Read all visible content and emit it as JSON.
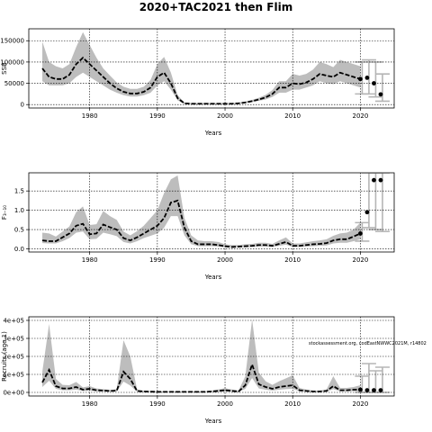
{
  "figure_title": "2020+TAC2021 then Flim",
  "credit": "stockassessment.org, codEastNWWC2021M, r14802",
  "colors": {
    "band": "#bdbdbd",
    "line": "#000000",
    "interval": "#b5b5b5",
    "grid": "#000000"
  },
  "chart_data": [
    {
      "type": "line",
      "title": "",
      "xlabel": "Years",
      "ylabel": "SSB",
      "grid": true,
      "xlim": [
        1971,
        2025
      ],
      "ylim": [
        -8000,
        178000
      ],
      "xticks": [
        1980,
        1990,
        2000,
        2010,
        2020
      ],
      "yticks": [
        0,
        50000,
        100000,
        150000
      ],
      "ytick_labels": [
        "0",
        "50000",
        "100000",
        "150000"
      ],
      "x": [
        1973,
        1974,
        1975,
        1976,
        1977,
        1978,
        1979,
        1980,
        1981,
        1982,
        1983,
        1984,
        1985,
        1986,
        1987,
        1988,
        1989,
        1990,
        1991,
        1992,
        1993,
        1994,
        1995,
        1996,
        1997,
        1998,
        1999,
        2000,
        2001,
        2002,
        2003,
        2004,
        2005,
        2006,
        2007,
        2008,
        2009,
        2010,
        2011,
        2012,
        2013,
        2014,
        2015,
        2016,
        2017,
        2018,
        2019,
        2020
      ],
      "series": [
        {
          "role": "estimate",
          "values": [
            85000,
            65000,
            60000,
            60000,
            70000,
            95000,
            110000,
            95000,
            80000,
            65000,
            50000,
            38000,
            30000,
            26000,
            26000,
            30000,
            40000,
            65000,
            75000,
            50000,
            15000,
            3000,
            2000,
            2000,
            2000,
            2000,
            2000,
            2000,
            2000,
            3000,
            5000,
            8000,
            12000,
            17000,
            25000,
            40000,
            40000,
            50000,
            48000,
            52000,
            60000,
            72000,
            68000,
            65000,
            75000,
            70000,
            65000,
            60000
          ]
        },
        {
          "role": "lower",
          "values": [
            55000,
            45000,
            45000,
            45000,
            50000,
            65000,
            75000,
            65000,
            55000,
            45000,
            35000,
            28000,
            22000,
            19000,
            19000,
            22000,
            28000,
            45000,
            55000,
            35000,
            10000,
            1500,
            1000,
            1000,
            1000,
            1000,
            1000,
            1000,
            1000,
            2000,
            3500,
            6000,
            9000,
            12000,
            18000,
            28000,
            28000,
            35000,
            35000,
            40000,
            45000,
            55000,
            50000,
            48000,
            55000,
            50000,
            45000,
            40000
          ]
        },
        {
          "role": "upper",
          "values": [
            148000,
            100000,
            90000,
            85000,
            95000,
            135000,
            170000,
            140000,
            110000,
            85000,
            68000,
            52000,
            42000,
            37000,
            37000,
            42000,
            58000,
            95000,
            112000,
            75000,
            22000,
            5000,
            3500,
            3500,
            3500,
            3500,
            3500,
            3500,
            3500,
            4500,
            7000,
            11000,
            16000,
            23000,
            34000,
            55000,
            55000,
            72000,
            68000,
            72000,
            82000,
            100000,
            95000,
            88000,
            105000,
            100000,
            95000,
            90000
          ]
        }
      ],
      "projection": [
        {
          "x": 2020,
          "median": 60000,
          "low": 25000,
          "high": 100000
        },
        {
          "x": 2021,
          "median": 63000,
          "low": 25000,
          "high": 105000
        },
        {
          "x": 2022,
          "median": 50000,
          "low": 18000,
          "high": 100000
        },
        {
          "x": 2023,
          "median": 24000,
          "low": 8000,
          "high": 72000
        }
      ]
    },
    {
      "type": "line",
      "title": "",
      "xlabel": "Years",
      "ylabel": "F₃₋₁₀",
      "grid": true,
      "xlim": [
        1971,
        2025
      ],
      "ylim": [
        -0.08,
        1.97
      ],
      "xticks": [
        1980,
        1990,
        2000,
        2010,
        2020
      ],
      "yticks": [
        0.0,
        0.5,
        1.0,
        1.5
      ],
      "ytick_labels": [
        "0.0",
        "0.5",
        "1.0",
        "1.5"
      ],
      "x": [
        1973,
        1974,
        1975,
        1976,
        1977,
        1978,
        1979,
        1980,
        1981,
        1982,
        1983,
        1984,
        1985,
        1986,
        1987,
        1988,
        1989,
        1990,
        1991,
        1992,
        1993,
        1994,
        1995,
        1996,
        1997,
        1998,
        1999,
        2000,
        2001,
        2002,
        2003,
        2004,
        2005,
        2006,
        2007,
        2008,
        2009,
        2010,
        2011,
        2012,
        2013,
        2014,
        2015,
        2016,
        2017,
        2018,
        2019,
        2020
      ],
      "series": [
        {
          "role": "estimate",
          "values": [
            0.22,
            0.2,
            0.2,
            0.3,
            0.4,
            0.6,
            0.65,
            0.38,
            0.4,
            0.63,
            0.56,
            0.5,
            0.28,
            0.22,
            0.3,
            0.4,
            0.5,
            0.6,
            0.8,
            1.2,
            1.25,
            0.55,
            0.2,
            0.12,
            0.12,
            0.12,
            0.1,
            0.07,
            0.05,
            0.06,
            0.07,
            0.08,
            0.1,
            0.1,
            0.08,
            0.13,
            0.18,
            0.08,
            0.08,
            0.1,
            0.12,
            0.13,
            0.15,
            0.22,
            0.25,
            0.25,
            0.32,
            0.4
          ]
        },
        {
          "role": "lower",
          "values": [
            0.15,
            0.14,
            0.14,
            0.2,
            0.28,
            0.42,
            0.45,
            0.25,
            0.26,
            0.42,
            0.38,
            0.33,
            0.18,
            0.14,
            0.2,
            0.28,
            0.34,
            0.4,
            0.55,
            0.85,
            0.85,
            0.35,
            0.12,
            0.07,
            0.07,
            0.07,
            0.06,
            0.04,
            0.03,
            0.04,
            0.04,
            0.05,
            0.06,
            0.06,
            0.05,
            0.08,
            0.11,
            0.05,
            0.05,
            0.06,
            0.07,
            0.08,
            0.09,
            0.14,
            0.16,
            0.16,
            0.2,
            0.25
          ]
        },
        {
          "role": "upper",
          "values": [
            0.42,
            0.4,
            0.32,
            0.45,
            0.58,
            0.95,
            1.1,
            0.62,
            0.64,
            0.98,
            0.85,
            0.75,
            0.45,
            0.35,
            0.46,
            0.6,
            0.8,
            1.0,
            1.45,
            1.8,
            1.9,
            0.8,
            0.35,
            0.22,
            0.2,
            0.2,
            0.18,
            0.12,
            0.1,
            0.1,
            0.12,
            0.13,
            0.16,
            0.16,
            0.13,
            0.22,
            0.3,
            0.14,
            0.14,
            0.17,
            0.2,
            0.22,
            0.25,
            0.34,
            0.4,
            0.42,
            0.5,
            0.68
          ]
        }
      ],
      "projection": [
        {
          "x": 2020,
          "median": 0.4,
          "low": 0.2,
          "high": 0.68
        },
        {
          "x": 2021,
          "median": 0.95,
          "low": 0.55,
          "high": 1.97
        },
        {
          "x": 2022,
          "median": 1.78,
          "low": 0.5,
          "high": 1.97
        },
        {
          "x": 2023,
          "median": 1.78,
          "low": 0.45,
          "high": 1.97
        }
      ]
    },
    {
      "type": "line",
      "title": "",
      "xlabel": "Years",
      "ylabel": "Recruits (age 1)",
      "grid": true,
      "xlim": [
        1971,
        2025
      ],
      "ylim": [
        -20000,
        420000
      ],
      "xticks": [
        1980,
        1990,
        2000,
        2010,
        2020
      ],
      "yticks": [
        0,
        100000,
        200000,
        300000,
        400000
      ],
      "ytick_labels": [
        "0e+00",
        "1e+05",
        "2e+05",
        "3e+05",
        "4e+05"
      ],
      "x": [
        1973,
        1974,
        1975,
        1976,
        1977,
        1978,
        1979,
        1980,
        1981,
        1982,
        1983,
        1984,
        1985,
        1986,
        1987,
        1988,
        1989,
        1990,
        1991,
        1992,
        1993,
        1994,
        1995,
        1996,
        1997,
        1998,
        1999,
        2000,
        2001,
        2002,
        2003,
        2004,
        2005,
        2006,
        2007,
        2008,
        2009,
        2010,
        2011,
        2012,
        2013,
        2014,
        2015,
        2016,
        2017,
        2018,
        2019,
        2020
      ],
      "series": [
        {
          "role": "estimate",
          "values": [
            55000,
            125000,
            35000,
            22000,
            22000,
            30000,
            15000,
            20000,
            12000,
            10000,
            8000,
            10000,
            115000,
            75000,
            8000,
            5000,
            4000,
            3000,
            3000,
            3000,
            3000,
            3000,
            3000,
            3000,
            3000,
            5000,
            8000,
            12000,
            8000,
            5000,
            40000,
            155000,
            45000,
            30000,
            20000,
            30000,
            35000,
            40000,
            12000,
            8000,
            5000,
            5000,
            8000,
            35000,
            12000,
            12000,
            15000,
            15000
          ]
        },
        {
          "role": "lower",
          "values": [
            30000,
            65000,
            20000,
            12000,
            12000,
            15000,
            8000,
            10000,
            6000,
            5000,
            4000,
            5000,
            60000,
            38000,
            4000,
            2500,
            2000,
            1500,
            1500,
            1500,
            1500,
            1500,
            1500,
            1500,
            1500,
            2500,
            4000,
            6000,
            4000,
            2500,
            20000,
            80000,
            22000,
            15000,
            10000,
            15000,
            18000,
            20000,
            6000,
            4000,
            2500,
            2500,
            4000,
            18000,
            6000,
            6000,
            7000,
            6000
          ]
        },
        {
          "role": "upper",
          "values": [
            115000,
            380000,
            75000,
            42000,
            40000,
            58000,
            28000,
            35000,
            22000,
            18000,
            14000,
            18000,
            290000,
            200000,
            16000,
            10000,
            8000,
            6000,
            6000,
            6000,
            6000,
            6000,
            6000,
            6000,
            6000,
            10000,
            16000,
            24000,
            16000,
            10000,
            90000,
            405000,
            110000,
            62000,
            42000,
            62000,
            78000,
            95000,
            25000,
            16000,
            10000,
            10000,
            16000,
            90000,
            25000,
            25000,
            30000,
            40000
          ]
        }
      ],
      "projection": [
        {
          "x": 2020,
          "median": 15000,
          "low": 0,
          "high": 90000
        },
        {
          "x": 2021,
          "median": 12000,
          "low": 0,
          "high": 160000
        },
        {
          "x": 2022,
          "median": 12000,
          "low": 0,
          "high": 120000
        },
        {
          "x": 2023,
          "median": 12000,
          "low": 0,
          "high": 140000
        }
      ]
    }
  ]
}
